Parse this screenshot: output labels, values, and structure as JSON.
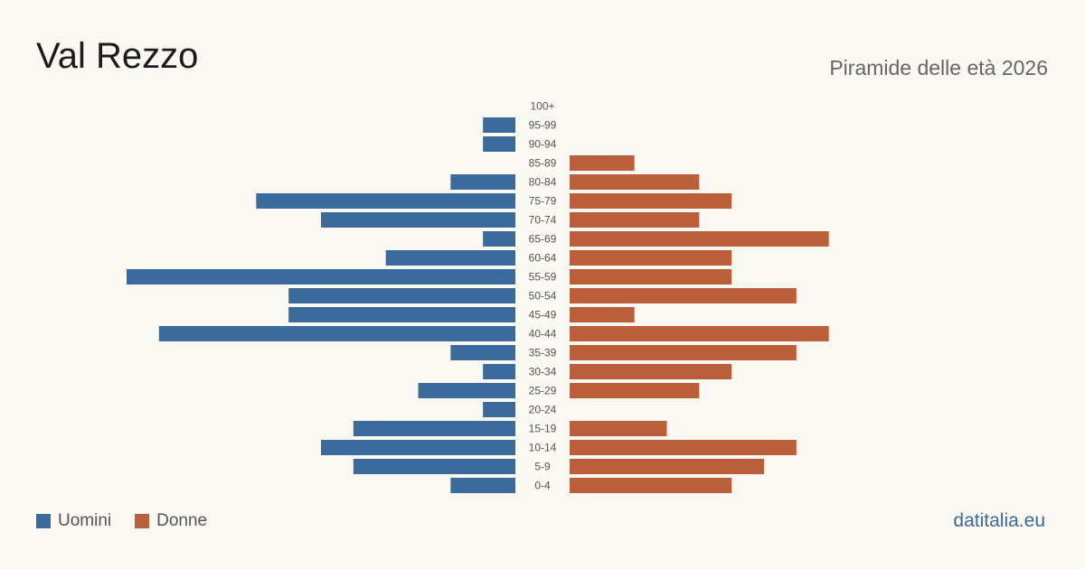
{
  "header": {
    "title": "Val Rezzo",
    "subtitle": "Piramide delle età 2026"
  },
  "legend": {
    "men_label": "Uomini",
    "women_label": "Donne"
  },
  "brand": "datitalia.eu",
  "colors": {
    "men": "#3b6b9c",
    "women": "#bb5e3c",
    "background": "#faf8f3"
  },
  "chart_data": {
    "type": "bar",
    "orientation": "horizontal-pyramid",
    "categories": [
      "100+",
      "95-99",
      "90-94",
      "85-89",
      "80-84",
      "75-79",
      "70-74",
      "65-69",
      "60-64",
      "55-59",
      "50-54",
      "45-49",
      "40-44",
      "35-39",
      "30-34",
      "25-29",
      "20-24",
      "15-19",
      "10-14",
      "5-9",
      "0-4"
    ],
    "series": [
      {
        "name": "Uomini",
        "values": [
          0,
          1,
          1,
          0,
          2,
          8,
          6,
          1,
          4,
          12,
          7,
          7,
          11,
          2,
          1,
          3,
          1,
          5,
          6,
          5,
          2
        ]
      },
      {
        "name": "Donne",
        "values": [
          0,
          0,
          0,
          2,
          4,
          5,
          4,
          8,
          5,
          5,
          7,
          2,
          8,
          7,
          5,
          4,
          0,
          3,
          7,
          6,
          5
        ]
      }
    ],
    "xlim": [
      0,
      12
    ],
    "grid": false,
    "legend_position": "bottom-left"
  }
}
